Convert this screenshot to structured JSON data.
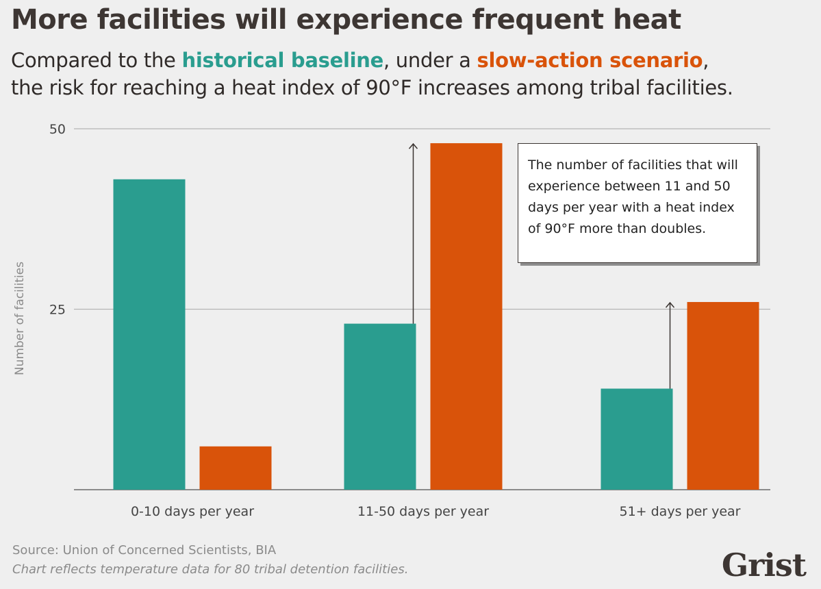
{
  "title": "More facilities will experience frequent heat",
  "subtitle": {
    "part1": "Compared to the ",
    "highlight1": "historical baseline",
    "part2": ", under a ",
    "highlight2": "slow-action scenario",
    "part3": ",",
    "line2": "the risk for reaching a heat index of 90°F increases among tribal facilities."
  },
  "annotation": "The number of facilities that will experience between 11 and 50 days per year with a heat index of 90°F more than doubles.",
  "source": "Source: Union of Concerned Scientists, BIA",
  "note": "Chart reflects temperature data for 80 tribal detention facilities.",
  "logo": "Grist",
  "colors": {
    "historical": "#2a9d8f",
    "slow_action": "#d9530a",
    "text": "#3d3633"
  },
  "chart_data": {
    "type": "bar",
    "categories": [
      "0-10 days per year",
      "11-50 days per year",
      "51+ days per year"
    ],
    "series": [
      {
        "name": "historical baseline",
        "values": [
          43,
          23,
          14
        ]
      },
      {
        "name": "slow-action scenario",
        "values": [
          6,
          48,
          26
        ]
      }
    ],
    "ylabel": "Number of facilities",
    "ylim": [
      0,
      50
    ],
    "yticks": [
      25,
      50
    ],
    "grid": true,
    "arrows": [
      "11-50 days per year",
      "51+ days per year"
    ]
  }
}
